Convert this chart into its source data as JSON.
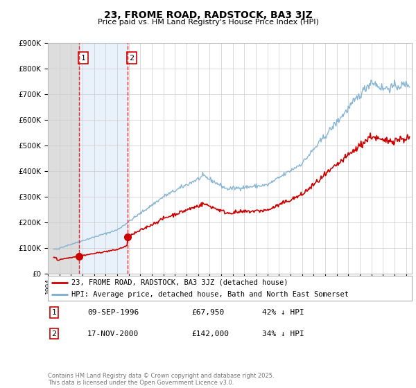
{
  "title": "23, FROME ROAD, RADSTOCK, BA3 3JZ",
  "subtitle": "Price paid vs. HM Land Registry's House Price Index (HPI)",
  "legend_line1": "23, FROME ROAD, RADSTOCK, BA3 3JZ (detached house)",
  "legend_line2": "HPI: Average price, detached house, Bath and North East Somerset",
  "transaction1_label": "1",
  "transaction1_date": "09-SEP-1996",
  "transaction1_price": "£67,950",
  "transaction1_hpi": "42% ↓ HPI",
  "transaction1_year": 1996.69,
  "transaction1_price_val": 67950,
  "transaction2_label": "2",
  "transaction2_date": "17-NOV-2000",
  "transaction2_price": "£142,000",
  "transaction2_hpi": "34% ↓ HPI",
  "transaction2_year": 2000.88,
  "transaction2_price_val": 142000,
  "footer": "Contains HM Land Registry data © Crown copyright and database right 2025.\nThis data is licensed under the Open Government Licence v3.0.",
  "ylim": [
    0,
    900000
  ],
  "xlim_start": 1994.0,
  "xlim_end": 2025.5,
  "hatch_end_year": 2000.88,
  "dashed_line1_x": 1996.69,
  "dashed_line2_x": 2000.88,
  "red_line_color": "#cc0000",
  "blue_line_color": "#7aadcf",
  "hatch_color": "#ddeeff",
  "background_color": "#ffffff",
  "grid_color": "#cccccc"
}
